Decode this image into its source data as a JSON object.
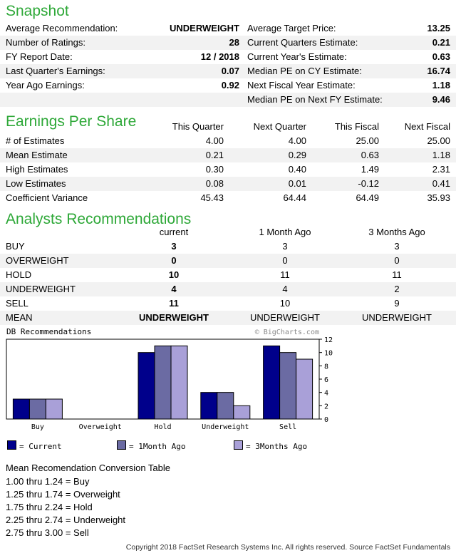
{
  "snapshot": {
    "title": "Snapshot",
    "left": [
      {
        "label": "Average Recommendation:",
        "value": "UNDERWEIGHT"
      },
      {
        "label": "Number of Ratings:",
        "value": "28"
      },
      {
        "label": "FY Report Date:",
        "value": "12 / 2018"
      },
      {
        "label": "Last Quarter's Earnings:",
        "value": "0.07"
      },
      {
        "label": "Year Ago Earnings:",
        "value": "0.92"
      }
    ],
    "right": [
      {
        "label": "Average Target Price:",
        "value": "13.25"
      },
      {
        "label": "Current Quarters Estimate:",
        "value": "0.21"
      },
      {
        "label": "Current Year's Estimate:",
        "value": "0.63"
      },
      {
        "label": "Median PE on CY Estimate:",
        "value": "16.74"
      },
      {
        "label": "Next Fiscal Year Estimate:",
        "value": "1.18"
      },
      {
        "label": "Median PE on Next FY Estimate:",
        "value": "9.46"
      }
    ]
  },
  "eps": {
    "title": "Earnings Per Share",
    "headers": [
      "This Quarter",
      "Next Quarter",
      "This Fiscal",
      "Next Fiscal"
    ],
    "rows": [
      {
        "label": "# of Estimates",
        "values": [
          "4.00",
          "4.00",
          "25.00",
          "25.00"
        ]
      },
      {
        "label": "Mean Estimate",
        "values": [
          "0.21",
          "0.29",
          "0.63",
          "1.18"
        ]
      },
      {
        "label": "High Estimates",
        "values": [
          "0.30",
          "0.40",
          "1.49",
          "2.31"
        ]
      },
      {
        "label": "Low Estimates",
        "values": [
          "0.08",
          "0.01",
          "-0.12",
          "0.41"
        ]
      },
      {
        "label": "Coefficient Variance",
        "values": [
          "45.43",
          "64.44",
          "64.49",
          "35.93"
        ]
      }
    ]
  },
  "analysts": {
    "title": "Analysts Recommendations",
    "headers": [
      "current",
      "1 Month Ago",
      "3 Months Ago"
    ],
    "rows": [
      {
        "label": "BUY",
        "values": [
          "3",
          "3",
          "3"
        ]
      },
      {
        "label": "OVERWEIGHT",
        "values": [
          "0",
          "0",
          "0"
        ]
      },
      {
        "label": "HOLD",
        "values": [
          "10",
          "11",
          "11"
        ]
      },
      {
        "label": "UNDERWEIGHT",
        "values": [
          "4",
          "4",
          "2"
        ]
      },
      {
        "label": "SELL",
        "values": [
          "11",
          "10",
          "9"
        ]
      },
      {
        "label": "MEAN",
        "values": [
          "UNDERWEIGHT",
          "UNDERWEIGHT",
          "UNDERWEIGHT"
        ]
      }
    ]
  },
  "chart_header": {
    "title": "DB Recommendations",
    "credit": "© BigCharts.com"
  },
  "colors": {
    "current": "#00008b",
    "one_month": "#6b6ba3",
    "three_months": "#a9a0d8",
    "title_green": "#2ea838"
  },
  "chart_data": {
    "type": "bar",
    "title": "DB Recommendations",
    "categories": [
      "Buy",
      "Overweight",
      "Hold",
      "Underweight",
      "Sell"
    ],
    "series": [
      {
        "name": "Current",
        "values": [
          3,
          0,
          10,
          4,
          11
        ]
      },
      {
        "name": "1Month Ago",
        "values": [
          3,
          0,
          11,
          4,
          10
        ]
      },
      {
        "name": "3Months Ago",
        "values": [
          3,
          0,
          11,
          2,
          9
        ]
      }
    ],
    "ylim": [
      0,
      12
    ],
    "yticks": [
      "0",
      "2",
      "4",
      "6",
      "8",
      "10",
      "12"
    ],
    "grid": false,
    "legend": "bottom"
  },
  "legend": [
    {
      "label": "= Current"
    },
    {
      "label": "= 1Month Ago"
    },
    {
      "label": "= 3Months Ago"
    }
  ],
  "conversion": {
    "title": "Mean Recomendation Conversion Table",
    "rows": [
      "1.00 thru 1.24 = Buy",
      "1.25 thru 1.74 = Overweight",
      "1.75 thru 2.24 = Hold",
      "2.25 thru 2.74 = Underweight",
      "2.75 thru 3.00 = Sell"
    ]
  },
  "footer": "Copyright 2018 FactSet Research Systems Inc. All rights reserved. Source FactSet Fundamentals"
}
